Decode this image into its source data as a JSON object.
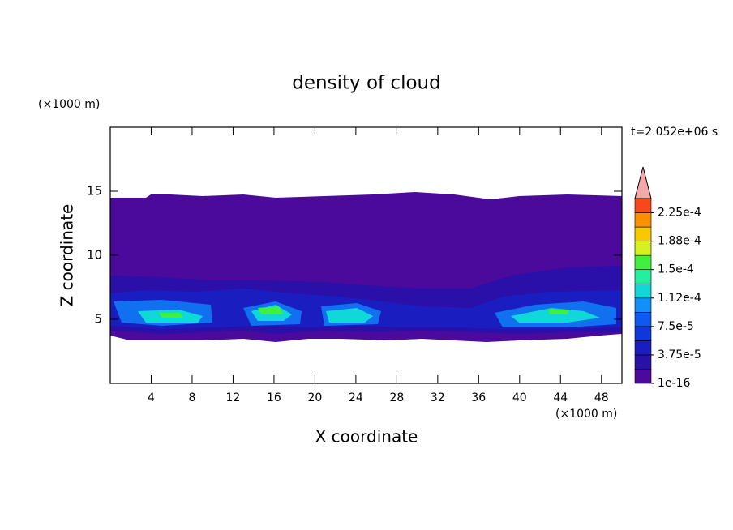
{
  "chart_data": {
    "type": "contour",
    "title": "density of cloud",
    "xlabel": "X coordinate",
    "ylabel": "Z coordinate",
    "x_unit": "(×1000 m)",
    "y_unit": "(×1000 m)",
    "time_label": "t=2.052e+06 s",
    "xlim": [
      0,
      50
    ],
    "xticks": [
      4,
      8,
      12,
      16,
      20,
      24,
      28,
      32,
      36,
      40,
      44,
      48
    ],
    "ylim": [
      0,
      20
    ],
    "yticks": [
      5,
      10,
      15
    ],
    "colorbar": {
      "lim": [
        0,
        0.00024375
      ],
      "ticks": [
        {
          "value": 1e-16,
          "label": "1e-16"
        },
        {
          "value": 3.75e-05,
          "label": "3.75e-5"
        },
        {
          "value": 7.5e-05,
          "label": "7.5e-5"
        },
        {
          "value": 0.0001125,
          "label": "1.12e-4"
        },
        {
          "value": 0.00015,
          "label": "1.5e-4"
        },
        {
          "value": 0.0001875,
          "label": "1.88e-4"
        },
        {
          "value": 0.000225,
          "label": "2.25e-4"
        }
      ],
      "colors": [
        "#4b0a9c",
        "#2a10a8",
        "#1a1ec0",
        "#1038d8",
        "#1058f0",
        "#1090f8",
        "#10d8d8",
        "#20f0a0",
        "#40f040",
        "#d8f020",
        "#f8c800",
        "#f89000",
        "#f84818"
      ]
    }
  }
}
